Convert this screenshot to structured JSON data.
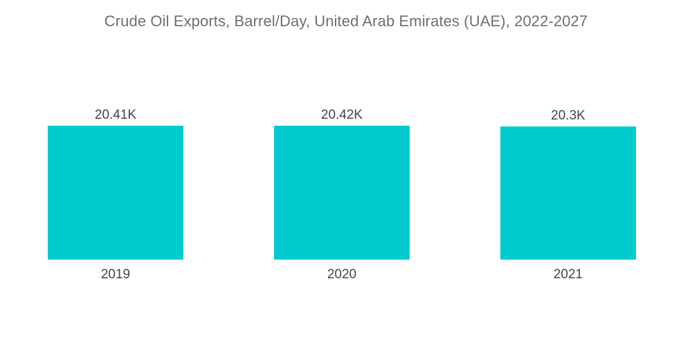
{
  "chart_data": {
    "type": "bar",
    "title": "Crude Oil Exports, Barrel/Day, United Arab Emirates (UAE), 2022-2027",
    "categories": [
      "2019",
      "2020",
      "2021"
    ],
    "values": [
      20410,
      20420,
      20300
    ],
    "data_labels": [
      "20.41K",
      "20.42K",
      "20.3K"
    ],
    "xlabel": "",
    "ylabel": "",
    "ylim": [
      0,
      20420
    ],
    "grid": false,
    "legend": "none",
    "bar_color": "#00ccd0"
  }
}
